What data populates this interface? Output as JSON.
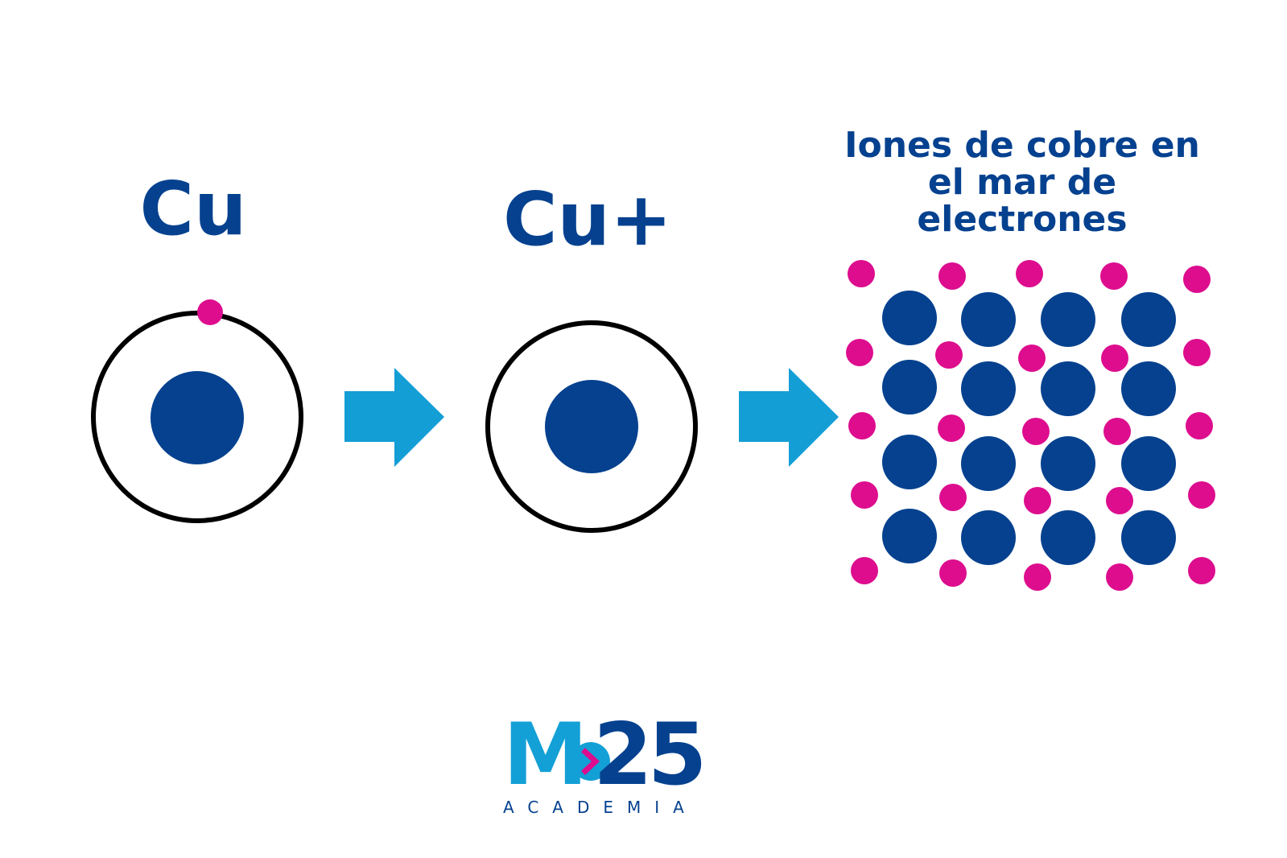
{
  "labels": {
    "neutral_atom": "Cu",
    "ion": "Cu+",
    "sea_title": "Iones de cobre en el mar de electrones"
  },
  "logo": {
    "mark_letter": "M",
    "mark_number": "25",
    "subtitle": "ACADEMIA"
  },
  "colors": {
    "ion": "#05418f",
    "electron": "#dd0d8e",
    "arrow": "#149ed6",
    "orbit": "#000000",
    "text": "#05418f"
  },
  "lattice": {
    "ion_rows": 4,
    "ion_cols": 4,
    "electron_count": 25
  }
}
